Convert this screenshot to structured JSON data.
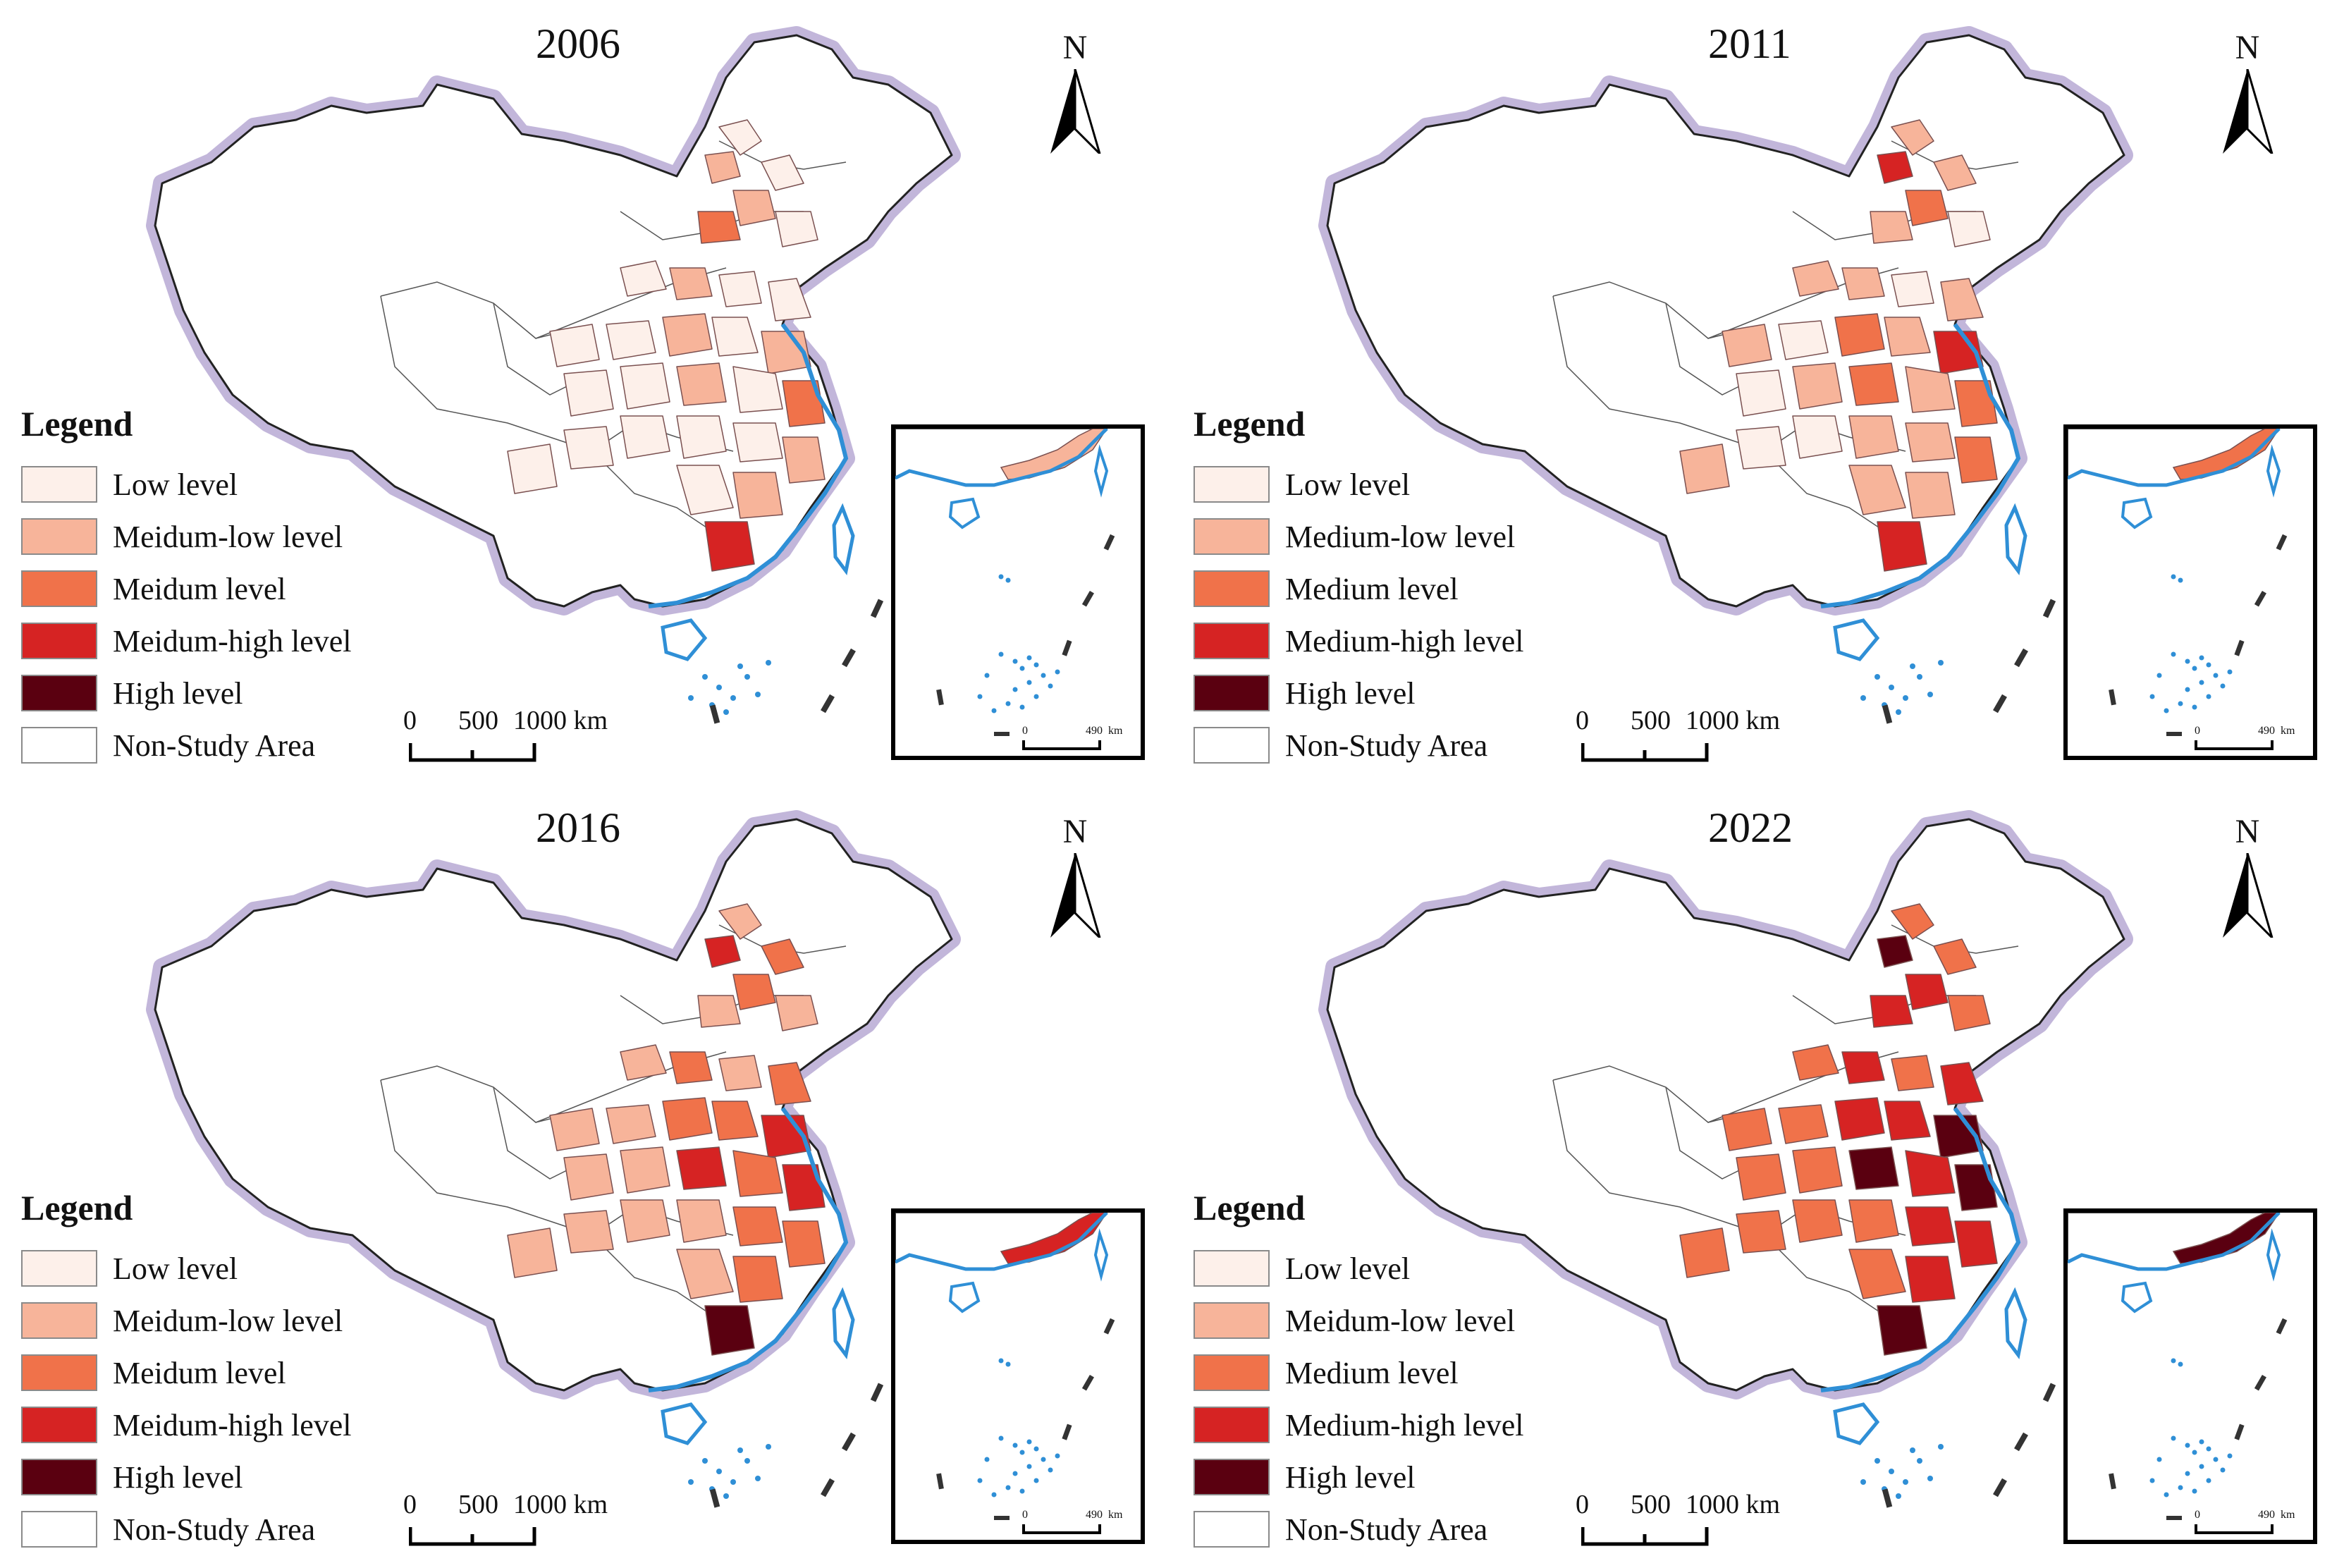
{
  "colors": {
    "low": "#fdf0ea",
    "medium_low": "#f7b49a",
    "medium": "#f0724a",
    "medium_high": "#d62323",
    "high": "#5a0010",
    "non_study": "#ffffff",
    "coast": "#2f8fd6",
    "border_halo": "#b7a9d4"
  },
  "north_label": "N",
  "legend_title": "Legend",
  "scale": {
    "ticks": [
      "0",
      "500",
      "1000 km"
    ]
  },
  "inset_scale": {
    "ticks": [
      "0",
      "490",
      "km"
    ]
  },
  "panels": [
    {
      "year": "2006",
      "legend": [
        "Low level",
        "Meidum-low level",
        "Meidum level",
        "Meidum-high level",
        "High level",
        "Non-Study Area"
      ]
    },
    {
      "year": "2011",
      "legend": [
        "Low level",
        "Medium-low level",
        "Medium level",
        "Medium-high level",
        "High level",
        "Non-Study Area"
      ]
    },
    {
      "year": "2016",
      "legend": [
        "Low level",
        "Meidum-low level",
        "Meidum level",
        "Meidum-high level",
        "High level",
        "Non-Study Area"
      ]
    },
    {
      "year": "2022",
      "legend": [
        "Low level",
        "Meidum-low level",
        "Medium level",
        "Medium-high level",
        "High level",
        "Non-Study Area"
      ]
    }
  ]
}
